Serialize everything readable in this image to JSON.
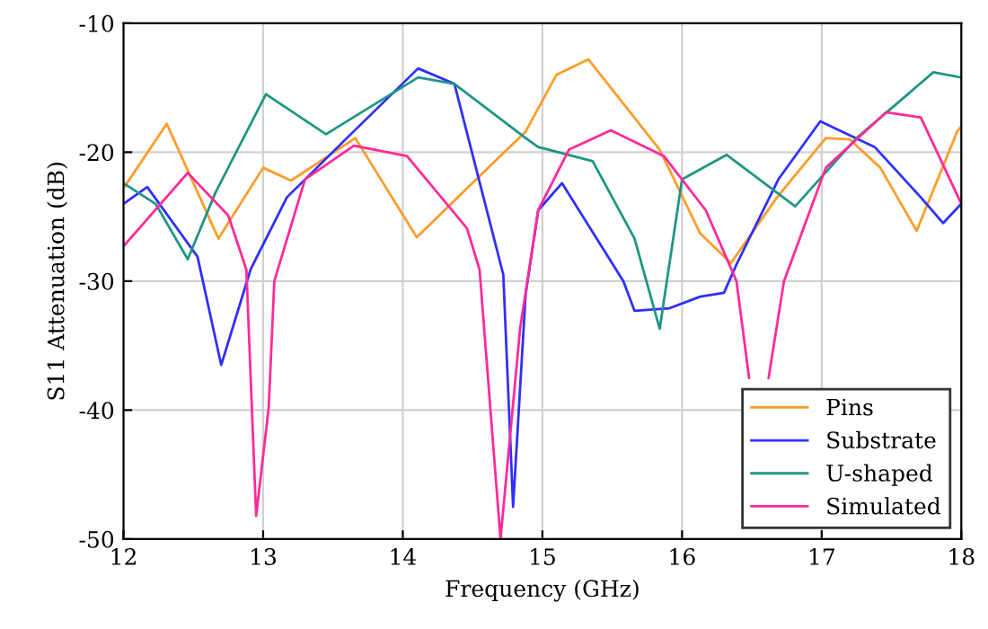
{
  "chart_data": {
    "type": "line",
    "xlabel": "Frequency (GHz)",
    "ylabel": "S11 Attenuation (dB)",
    "xlim": [
      12,
      18
    ],
    "ylim": [
      -50,
      -10
    ],
    "xticks": [
      12,
      13,
      14,
      15,
      16,
      17,
      18
    ],
    "yticks": [
      -50,
      -40,
      -30,
      -20,
      -10
    ],
    "grid": true,
    "legend": "bottom right",
    "marker": "none",
    "line_style": "solid",
    "series": [
      {
        "name": "Pins",
        "color": "#ff9c2a",
        "x": [
          12,
          12.31,
          12.68,
          13.0,
          13.2,
          13.66,
          14.1,
          14.46,
          14.88,
          15.1,
          15.33,
          15.84,
          16.13,
          16.35,
          16.68,
          17.03,
          17.2,
          17.42,
          17.68,
          17.97,
          18
        ],
        "values": [
          -22.8,
          -17.8,
          -26.7,
          -21.2,
          -22.2,
          -18.9,
          -26.6,
          -22.8,
          -18.4,
          -14,
          -12.8,
          -19.8,
          -26.3,
          -28.6,
          -23.5,
          -18.9,
          -19,
          -21.2,
          -26.1,
          -18.4,
          -18
        ]
      },
      {
        "name": "Substrate",
        "color": "#2f2fff",
        "x": [
          12,
          12.17,
          12.53,
          12.7,
          12.91,
          13.17,
          13.6,
          14.11,
          14.37,
          14.72,
          14.79,
          14.88,
          14.97,
          15.14,
          15.58,
          15.66,
          15.91,
          16.13,
          16.3,
          16.39,
          16.69,
          16.99,
          17.38,
          17.71,
          17.87,
          18
        ],
        "values": [
          -24,
          -22.7,
          -28.1,
          -36.5,
          -29.1,
          -23.5,
          -18.9,
          -13.5,
          -14.7,
          -29.5,
          -47.5,
          -31,
          -24.5,
          -22.4,
          -30,
          -32.3,
          -32.1,
          -31.2,
          -30.9,
          -28.7,
          -22.1,
          -17.6,
          -19.6,
          -23.5,
          -25.5,
          -24
        ]
      },
      {
        "name": "U-shaped",
        "color": "#1f9585",
        "x": [
          12,
          12.23,
          12.46,
          12.66,
          13.02,
          13.45,
          14.11,
          14.37,
          14.88,
          14.97,
          15.36,
          15.66,
          15.84,
          16.0,
          16.32,
          16.81,
          17.25,
          17.8,
          18
        ],
        "values": [
          -22.4,
          -24,
          -28.3,
          -23.1,
          -15.5,
          -18.6,
          -14.2,
          -14.7,
          -18.9,
          -19.6,
          -20.7,
          -26.7,
          -33.7,
          -22.1,
          -20.2,
          -24.2,
          -18.9,
          -13.8,
          -14.2
        ]
      },
      {
        "name": "Simulated",
        "color": "#ff2a9a",
        "x": [
          12,
          12.46,
          12.75,
          12.88,
          12.95,
          13.04,
          13.08,
          13.3,
          13.65,
          14.03,
          14.46,
          14.55,
          14.7,
          14.84,
          14.97,
          15.19,
          15.49,
          15.87,
          16.17,
          16.39,
          16.48,
          16.55,
          16.62,
          16.73,
          17.03,
          17.46,
          17.71,
          18
        ],
        "values": [
          -27.3,
          -21.6,
          -24.9,
          -29.1,
          -48.2,
          -39.8,
          -30,
          -22.1,
          -19.5,
          -20.3,
          -25.9,
          -29.1,
          -50,
          -33.7,
          -24.5,
          -19.8,
          -18.3,
          -20.3,
          -24.5,
          -30,
          -37.5,
          null,
          -37.5,
          -30,
          -21.2,
          -16.9,
          -17.3,
          -24
        ]
      }
    ]
  }
}
